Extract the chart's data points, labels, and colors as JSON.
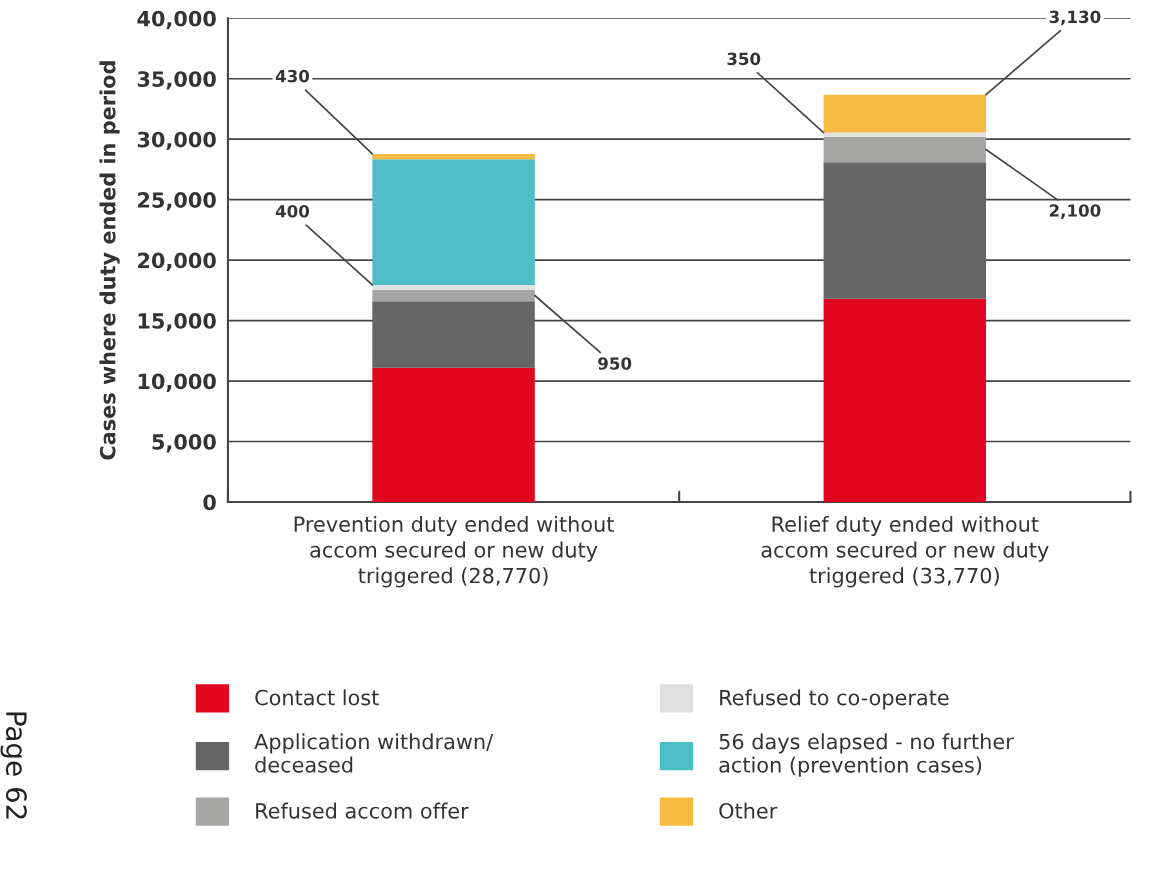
{
  "chart_data": {
    "type": "bar",
    "stacked": true,
    "ylabel": "Cases where duty ended in period",
    "categories": [
      "Prevention duty ended without\naccom secured or new duty\ntriggered (28,770)",
      "Relief duty ended without\naccom secured or new duty\ntriggered (33,770)"
    ],
    "series": [
      {
        "name": "Contact lost",
        "color": "#e20520",
        "values": [
          11100,
          16800
        ],
        "value_labels": [
          null,
          null
        ]
      },
      {
        "name": "Application withdrawn/\ndeceased",
        "color": "#656565",
        "values": [
          5500,
          11300
        ],
        "value_labels": [
          null,
          null
        ]
      },
      {
        "name": "Refused accom offer",
        "color": "#a6a6a5",
        "values": [
          950,
          2100
        ],
        "value_labels": [
          "950",
          "2,100"
        ]
      },
      {
        "name": "Refused to co-operate",
        "color": "#e0e0e0",
        "values": [
          400,
          350
        ],
        "value_labels": [
          "400",
          "350"
        ]
      },
      {
        "name": "56 days elapsed - no further\naction (prevention cases)",
        "color": "#4ebec6",
        "values": [
          10400,
          0
        ],
        "value_labels": [
          null,
          null
        ]
      },
      {
        "name": "Other",
        "color": "#f8bb42",
        "values": [
          430,
          3130
        ],
        "value_labels": [
          "430",
          "3,130"
        ]
      }
    ],
    "ylim": [
      0,
      40000
    ],
    "yticks": [
      0,
      {
        "value": 5000,
        "label": "5,000"
      },
      {
        "value": 10000,
        "label": "10,000"
      },
      {
        "value": 15000,
        "label": "15,000"
      },
      {
        "value": 20000,
        "label": "20,000"
      },
      {
        "value": 25000,
        "label": "25,000"
      },
      {
        "value": 30000,
        "label": "30,000"
      },
      {
        "value": 35000,
        "label": "35,000"
      },
      {
        "value": 40000,
        "label": "40,000"
      }
    ],
    "grid": "y",
    "legend": "bottom",
    "annotations": [
      "Page 62"
    ]
  }
}
